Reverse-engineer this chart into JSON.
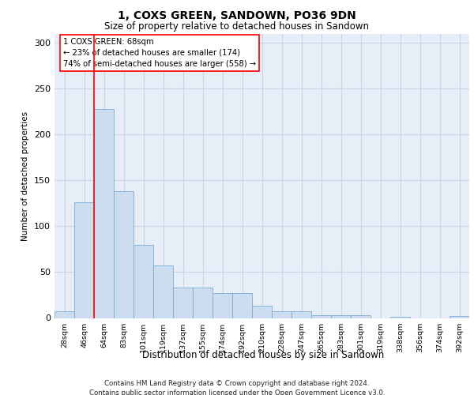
{
  "title": "1, COXS GREEN, SANDOWN, PO36 9DN",
  "subtitle": "Size of property relative to detached houses in Sandown",
  "xlabel": "Distribution of detached houses by size in Sandown",
  "ylabel": "Number of detached properties",
  "categories": [
    "28sqm",
    "46sqm",
    "64sqm",
    "83sqm",
    "101sqm",
    "119sqm",
    "137sqm",
    "155sqm",
    "174sqm",
    "192sqm",
    "210sqm",
    "228sqm",
    "247sqm",
    "265sqm",
    "283sqm",
    "301sqm",
    "319sqm",
    "338sqm",
    "356sqm",
    "374sqm",
    "392sqm"
  ],
  "values": [
    7,
    126,
    228,
    138,
    80,
    57,
    33,
    33,
    27,
    27,
    13,
    7,
    7,
    3,
    3,
    3,
    0,
    1,
    0,
    0,
    2
  ],
  "bar_color": "#ccddf0",
  "bar_edge_color": "#7aadd4",
  "grid_color": "#c8d4e8",
  "background_color": "#e8eef8",
  "annotation_text": "1 COXS GREEN: 68sqm\n← 23% of detached houses are smaller (174)\n74% of semi-detached houses are larger (558) →",
  "annotation_box_color": "white",
  "annotation_box_edge_color": "red",
  "vline_x": 1.5,
  "vline_color": "red",
  "ylim": [
    0,
    310
  ],
  "yticks": [
    0,
    50,
    100,
    150,
    200,
    250,
    300
  ],
  "footnote_line1": "Contains HM Land Registry data © Crown copyright and database right 2024.",
  "footnote_line2": "Contains public sector information licensed under the Open Government Licence v3.0."
}
